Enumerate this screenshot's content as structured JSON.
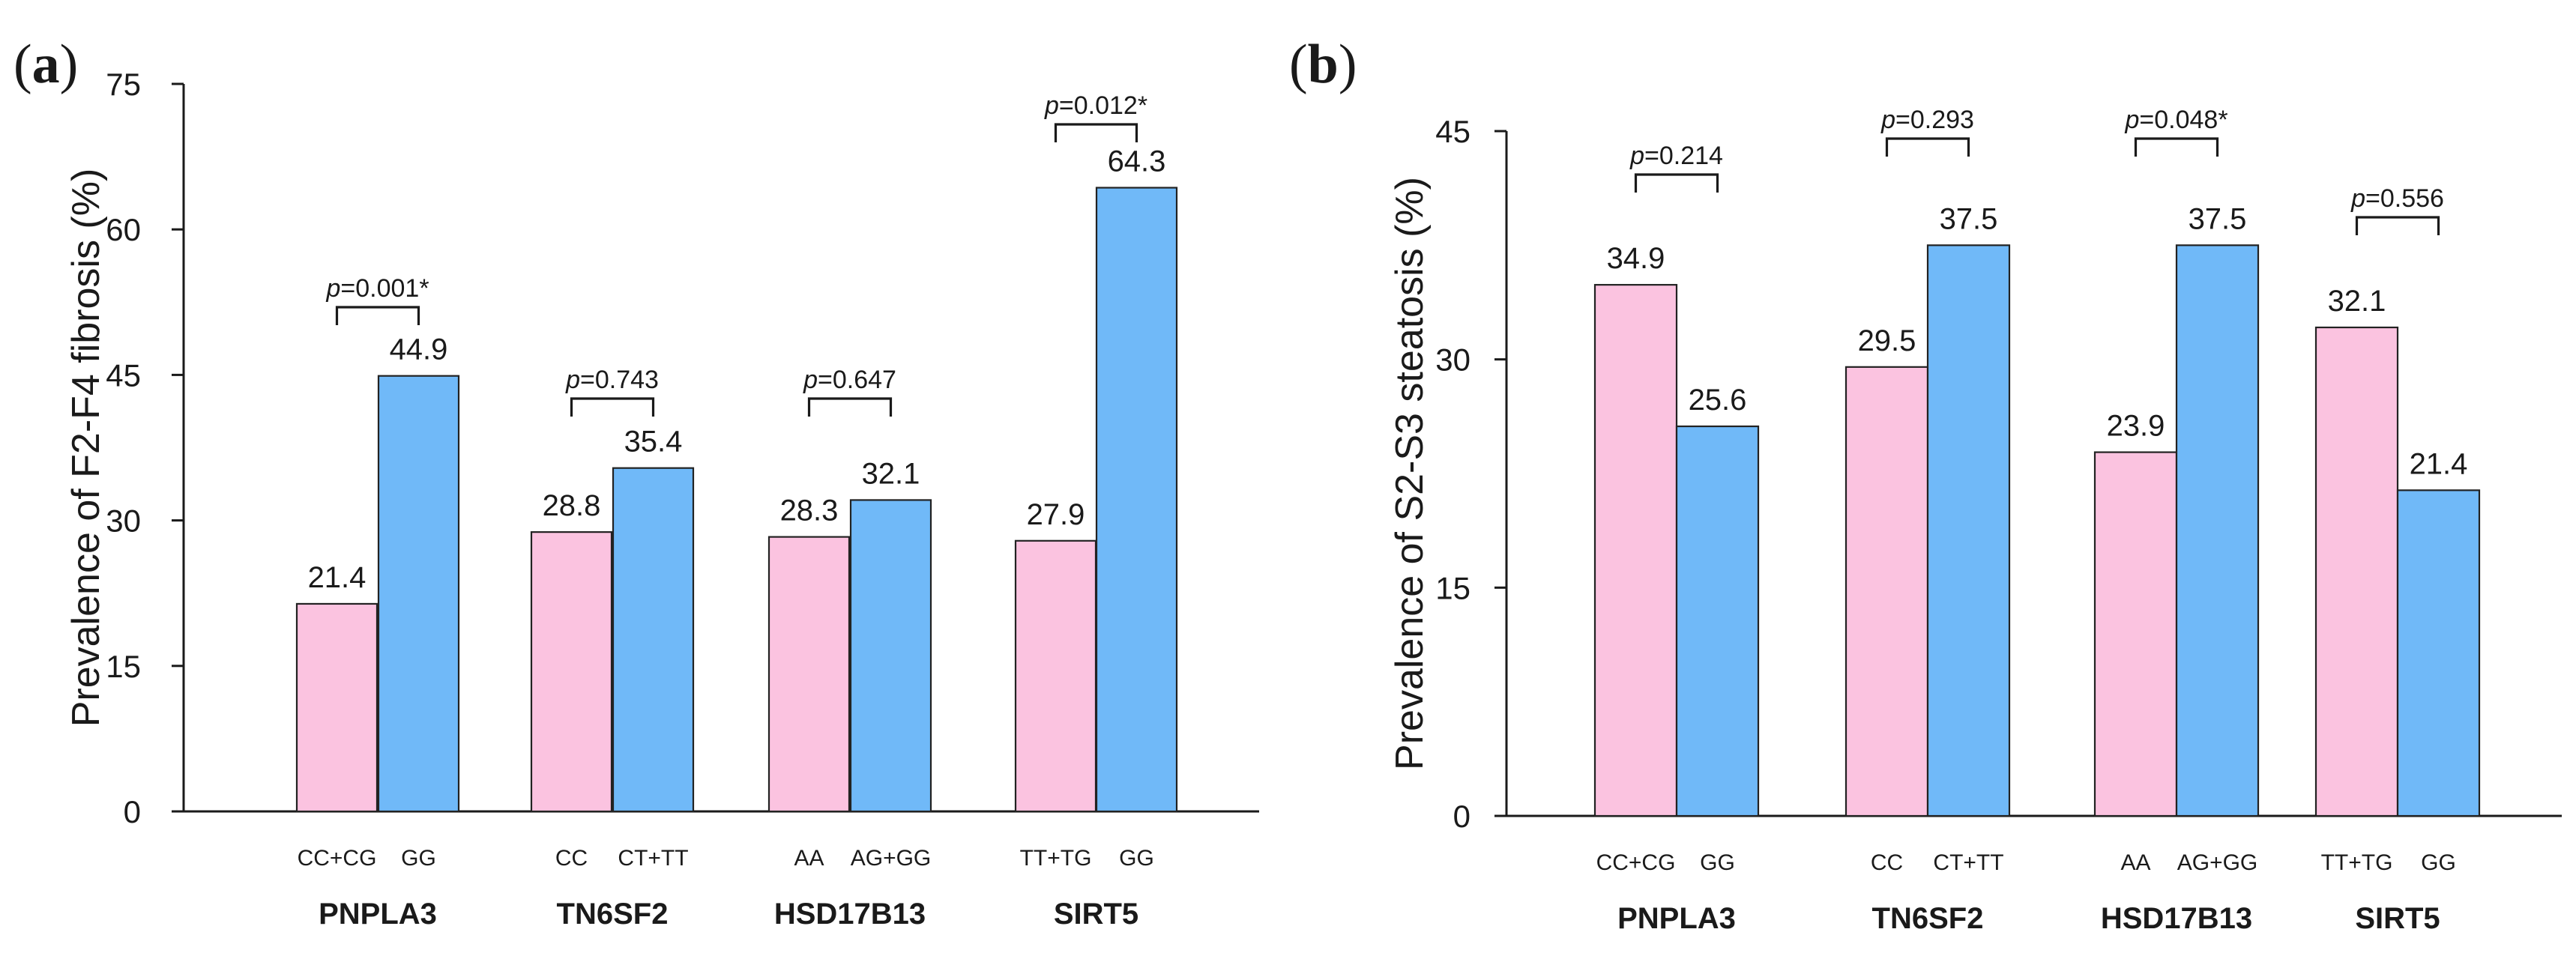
{
  "colors": {
    "pink": "#fbc3e0",
    "blue": "#70b9f8",
    "axis": "#1a1a1a"
  },
  "chart_data": [
    {
      "type": "bar",
      "panel": "(a)",
      "ylabel": "Prevalence of F2-F4 fibrosis (%)",
      "ylim": [
        0,
        75
      ],
      "yticks": [
        0,
        15,
        30,
        45,
        60,
        75
      ],
      "groups": [
        {
          "gene": "PNPLA3",
          "genotypes": [
            "CC+CG",
            "GG"
          ],
          "values": [
            21.4,
            44.9
          ],
          "p": "=0.001*"
        },
        {
          "gene": "TN6SF2",
          "genotypes": [
            "CC",
            "CT+TT"
          ],
          "values": [
            28.8,
            35.4
          ],
          "p": "=0.743"
        },
        {
          "gene": "HSD17B13",
          "genotypes": [
            "AA",
            "AG+GG"
          ],
          "values": [
            28.3,
            32.1
          ],
          "p": "=0.647"
        },
        {
          "gene": "SIRT5",
          "genotypes": [
            "TT+TG",
            "GG"
          ],
          "values": [
            27.9,
            64.3
          ],
          "p": "=0.012*"
        }
      ]
    },
    {
      "type": "bar",
      "panel": "(b)",
      "ylabel": "Prevalence of S2-S3 steatosis (%)",
      "ylim": [
        0,
        45
      ],
      "yticks": [
        0,
        15,
        30,
        45
      ],
      "groups": [
        {
          "gene": "PNPLA3",
          "genotypes": [
            "CC+CG",
            "GG"
          ],
          "values": [
            34.9,
            25.6
          ],
          "p": "=0.214"
        },
        {
          "gene": "TN6SF2",
          "genotypes": [
            "CC",
            "CT+TT"
          ],
          "values": [
            29.5,
            37.5
          ],
          "p": "=0.293"
        },
        {
          "gene": "HSD17B13",
          "genotypes": [
            "AA",
            "AG+GG"
          ],
          "values": [
            23.9,
            37.5
          ],
          "p": "=0.048*"
        },
        {
          "gene": "SIRT5",
          "genotypes": [
            "TT+TG",
            "GG"
          ],
          "values": [
            32.1,
            21.4
          ],
          "p": "=0.556"
        }
      ]
    }
  ]
}
